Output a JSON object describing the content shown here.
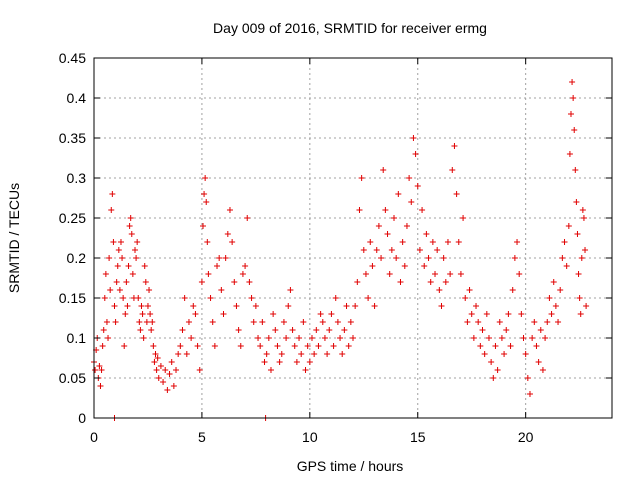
{
  "chart_data": {
    "type": "scatter",
    "title": "Day 009 of 2016, SRMTID for receiver ermg",
    "xlabel": "GPS time / hours",
    "ylabel": "SRMTID / TECUs",
    "xlim": [
      0,
      24
    ],
    "ylim": [
      0,
      0.45
    ],
    "grid": true,
    "xticks": [
      0,
      5,
      10,
      15,
      20
    ],
    "xtick_labels": [
      "0",
      "5",
      "10",
      "15",
      "20"
    ],
    "yticks": [
      0,
      0.05,
      0.1,
      0.15,
      0.2,
      0.25,
      0.3,
      0.35,
      0.4,
      0.45
    ],
    "ytick_labels": [
      "0",
      "0.05",
      "0.1",
      "0.15",
      "0.2",
      "0.25",
      "0.3",
      "0.35",
      "0.4",
      "0.45"
    ],
    "marker": "plus",
    "color": "#e00000",
    "series": [
      {
        "name": "SRMTID",
        "points": [
          [
            0.0,
            0.07
          ],
          [
            0.05,
            0.06
          ],
          [
            0.1,
            0.085
          ],
          [
            0.15,
            0.1
          ],
          [
            0.2,
            0.05
          ],
          [
            0.25,
            0.065
          ],
          [
            0.3,
            0.04
          ],
          [
            0.35,
            0.06
          ],
          [
            0.4,
            0.09
          ],
          [
            0.45,
            0.11
          ],
          [
            0.5,
            0.15
          ],
          [
            0.55,
            0.18
          ],
          [
            0.6,
            0.12
          ],
          [
            0.65,
            0.1
          ],
          [
            0.7,
            0.2
          ],
          [
            0.75,
            0.16
          ],
          [
            0.8,
            0.26
          ],
          [
            0.85,
            0.28
          ],
          [
            0.9,
            0.22
          ],
          [
            0.95,
            0.14
          ],
          [
            1.0,
            0.12
          ],
          [
            1.05,
            0.17
          ],
          [
            1.1,
            0.19
          ],
          [
            1.15,
            0.21
          ],
          [
            1.2,
            0.16
          ],
          [
            1.25,
            0.22
          ],
          [
            1.3,
            0.2
          ],
          [
            1.35,
            0.15
          ],
          [
            1.4,
            0.09
          ],
          [
            1.45,
            0.13
          ],
          [
            1.5,
            0.17
          ],
          [
            1.55,
            0.14
          ],
          [
            1.6,
            0.19
          ],
          [
            1.65,
            0.24
          ],
          [
            1.7,
            0.25
          ],
          [
            1.75,
            0.23
          ],
          [
            1.8,
            0.18
          ],
          [
            1.85,
            0.15
          ],
          [
            1.9,
            0.21
          ],
          [
            1.95,
            0.2
          ],
          [
            2.0,
            0.22
          ],
          [
            2.05,
            0.15
          ],
          [
            2.1,
            0.12
          ],
          [
            2.15,
            0.11
          ],
          [
            2.2,
            0.14
          ],
          [
            2.25,
            0.13
          ],
          [
            2.3,
            0.1
          ],
          [
            2.35,
            0.19
          ],
          [
            2.4,
            0.17
          ],
          [
            2.45,
            0.12
          ],
          [
            2.5,
            0.14
          ],
          [
            2.55,
            0.16
          ],
          [
            2.6,
            0.13
          ],
          [
            2.65,
            0.11
          ],
          [
            2.7,
            0.12
          ],
          [
            2.75,
            0.09
          ],
          [
            2.8,
            0.07
          ],
          [
            2.85,
            0.08
          ],
          [
            2.9,
            0.06
          ],
          [
            2.95,
            0.075
          ],
          [
            3.0,
            0.05
          ],
          [
            3.1,
            0.065
          ],
          [
            3.2,
            0.045
          ],
          [
            3.3,
            0.06
          ],
          [
            3.4,
            0.035
          ],
          [
            3.5,
            0.055
          ],
          [
            3.6,
            0.07
          ],
          [
            3.7,
            0.04
          ],
          [
            3.8,
            0.06
          ],
          [
            3.9,
            0.08
          ],
          [
            4.0,
            0.09
          ],
          [
            4.1,
            0.11
          ],
          [
            4.2,
            0.15
          ],
          [
            4.3,
            0.08
          ],
          [
            4.4,
            0.12
          ],
          [
            4.5,
            0.1
          ],
          [
            4.6,
            0.14
          ],
          [
            4.7,
            0.13
          ],
          [
            4.8,
            0.09
          ],
          [
            4.9,
            0.06
          ],
          [
            5.0,
            0.17
          ],
          [
            5.05,
            0.24
          ],
          [
            5.1,
            0.28
          ],
          [
            5.15,
            0.3
          ],
          [
            5.2,
            0.27
          ],
          [
            5.25,
            0.22
          ],
          [
            5.3,
            0.18
          ],
          [
            5.4,
            0.15
          ],
          [
            5.5,
            0.12
          ],
          [
            5.6,
            0.09
          ],
          [
            5.7,
            0.19
          ],
          [
            5.8,
            0.2
          ],
          [
            5.9,
            0.16
          ],
          [
            6.0,
            0.13
          ],
          [
            6.1,
            0.2
          ],
          [
            6.2,
            0.23
          ],
          [
            6.3,
            0.26
          ],
          [
            6.4,
            0.22
          ],
          [
            6.5,
            0.17
          ],
          [
            6.6,
            0.14
          ],
          [
            6.7,
            0.11
          ],
          [
            6.8,
            0.09
          ],
          [
            6.9,
            0.18
          ],
          [
            7.0,
            0.19
          ],
          [
            7.1,
            0.25
          ],
          [
            7.2,
            0.17
          ],
          [
            7.3,
            0.15
          ],
          [
            7.4,
            0.12
          ],
          [
            7.5,
            0.14
          ],
          [
            7.6,
            0.1
          ],
          [
            7.7,
            0.09
          ],
          [
            7.8,
            0.12
          ],
          [
            7.9,
            0.07
          ],
          [
            8.0,
            0.08
          ],
          [
            8.1,
            0.1
          ],
          [
            8.2,
            0.06
          ],
          [
            8.3,
            0.13
          ],
          [
            8.4,
            0.11
          ],
          [
            8.5,
            0.09
          ],
          [
            8.6,
            0.07
          ],
          [
            8.7,
            0.08
          ],
          [
            8.8,
            0.12
          ],
          [
            8.9,
            0.1
          ],
          [
            9.0,
            0.14
          ],
          [
            9.1,
            0.16
          ],
          [
            9.2,
            0.11
          ],
          [
            9.3,
            0.09
          ],
          [
            9.4,
            0.07
          ],
          [
            9.5,
            0.1
          ],
          [
            9.6,
            0.08
          ],
          [
            9.7,
            0.12
          ],
          [
            9.8,
            0.06
          ],
          [
            9.9,
            0.09
          ],
          [
            10.0,
            0.07
          ],
          [
            10.1,
            0.1
          ],
          [
            10.2,
            0.08
          ],
          [
            10.3,
            0.11
          ],
          [
            10.4,
            0.09
          ],
          [
            10.5,
            0.13
          ],
          [
            10.6,
            0.12
          ],
          [
            10.7,
            0.1
          ],
          [
            10.8,
            0.08
          ],
          [
            10.9,
            0.11
          ],
          [
            11.0,
            0.13
          ],
          [
            11.1,
            0.09
          ],
          [
            11.2,
            0.15
          ],
          [
            11.3,
            0.12
          ],
          [
            11.4,
            0.1
          ],
          [
            11.5,
            0.08
          ],
          [
            11.6,
            0.11
          ],
          [
            11.7,
            0.14
          ],
          [
            11.8,
            0.09
          ],
          [
            11.9,
            0.12
          ],
          [
            12.0,
            0.1
          ],
          [
            12.1,
            0.14
          ],
          [
            12.2,
            0.17
          ],
          [
            12.3,
            0.26
          ],
          [
            12.4,
            0.3
          ],
          [
            12.5,
            0.21
          ],
          [
            12.6,
            0.18
          ],
          [
            12.7,
            0.15
          ],
          [
            12.8,
            0.22
          ],
          [
            12.9,
            0.19
          ],
          [
            13.0,
            0.14
          ],
          [
            13.1,
            0.21
          ],
          [
            13.2,
            0.24
          ],
          [
            13.3,
            0.2
          ],
          [
            13.4,
            0.31
          ],
          [
            13.5,
            0.26
          ],
          [
            13.6,
            0.23
          ],
          [
            13.7,
            0.18
          ],
          [
            13.8,
            0.21
          ],
          [
            13.9,
            0.25
          ],
          [
            14.0,
            0.2
          ],
          [
            14.1,
            0.28
          ],
          [
            14.2,
            0.17
          ],
          [
            14.3,
            0.22
          ],
          [
            14.4,
            0.19
          ],
          [
            14.5,
            0.24
          ],
          [
            14.6,
            0.3
          ],
          [
            14.7,
            0.27
          ],
          [
            14.8,
            0.35
          ],
          [
            14.9,
            0.33
          ],
          [
            15.0,
            0.29
          ],
          [
            15.1,
            0.21
          ],
          [
            15.2,
            0.26
          ],
          [
            15.3,
            0.19
          ],
          [
            15.4,
            0.23
          ],
          [
            15.5,
            0.2
          ],
          [
            15.6,
            0.17
          ],
          [
            15.7,
            0.22
          ],
          [
            15.8,
            0.18
          ],
          [
            15.9,
            0.21
          ],
          [
            16.0,
            0.16
          ],
          [
            16.1,
            0.14
          ],
          [
            16.2,
            0.2
          ],
          [
            16.3,
            0.17
          ],
          [
            16.4,
            0.22
          ],
          [
            16.5,
            0.18
          ],
          [
            16.6,
            0.31
          ],
          [
            16.7,
            0.34
          ],
          [
            16.8,
            0.28
          ],
          [
            16.9,
            0.22
          ],
          [
            17.0,
            0.18
          ],
          [
            17.1,
            0.25
          ],
          [
            17.2,
            0.15
          ],
          [
            17.3,
            0.12
          ],
          [
            17.4,
            0.16
          ],
          [
            17.5,
            0.13
          ],
          [
            17.6,
            0.1
          ],
          [
            17.7,
            0.14
          ],
          [
            17.8,
            0.12
          ],
          [
            17.9,
            0.09
          ],
          [
            18.0,
            0.11
          ],
          [
            18.1,
            0.08
          ],
          [
            18.2,
            0.13
          ],
          [
            18.3,
            0.1
          ],
          [
            18.4,
            0.07
          ],
          [
            18.5,
            0.05
          ],
          [
            18.6,
            0.09
          ],
          [
            18.7,
            0.06
          ],
          [
            18.8,
            0.12
          ],
          [
            18.9,
            0.1
          ],
          [
            19.0,
            0.08
          ],
          [
            19.1,
            0.11
          ],
          [
            19.2,
            0.13
          ],
          [
            19.3,
            0.09
          ],
          [
            19.4,
            0.16
          ],
          [
            19.5,
            0.2
          ],
          [
            19.6,
            0.22
          ],
          [
            19.7,
            0.18
          ],
          [
            19.8,
            0.13
          ],
          [
            19.9,
            0.1
          ],
          [
            20.0,
            0.08
          ],
          [
            20.1,
            0.05
          ],
          [
            20.2,
            0.03
          ],
          [
            20.3,
            0.1
          ],
          [
            20.4,
            0.12
          ],
          [
            20.5,
            0.09
          ],
          [
            20.6,
            0.07
          ],
          [
            20.7,
            0.11
          ],
          [
            20.8,
            0.06
          ],
          [
            20.9,
            0.1
          ],
          [
            21.0,
            0.12
          ],
          [
            21.1,
            0.15
          ],
          [
            21.2,
            0.13
          ],
          [
            21.3,
            0.17
          ],
          [
            21.4,
            0.14
          ],
          [
            21.5,
            0.12
          ],
          [
            21.6,
            0.16
          ],
          [
            21.7,
            0.2
          ],
          [
            21.8,
            0.22
          ],
          [
            21.9,
            0.19
          ],
          [
            22.0,
            0.24
          ],
          [
            22.05,
            0.33
          ],
          [
            22.1,
            0.38
          ],
          [
            22.15,
            0.42
          ],
          [
            22.2,
            0.4
          ],
          [
            22.25,
            0.36
          ],
          [
            22.3,
            0.31
          ],
          [
            22.35,
            0.27
          ],
          [
            22.4,
            0.23
          ],
          [
            22.45,
            0.18
          ],
          [
            22.5,
            0.15
          ],
          [
            22.55,
            0.13
          ],
          [
            22.6,
            0.2
          ],
          [
            22.65,
            0.26
          ],
          [
            22.7,
            0.25
          ],
          [
            22.75,
            0.21
          ],
          [
            22.8,
            0.14
          ],
          [
            0.95,
            0.0
          ],
          [
            7.95,
            0.0
          ]
        ]
      }
    ]
  }
}
